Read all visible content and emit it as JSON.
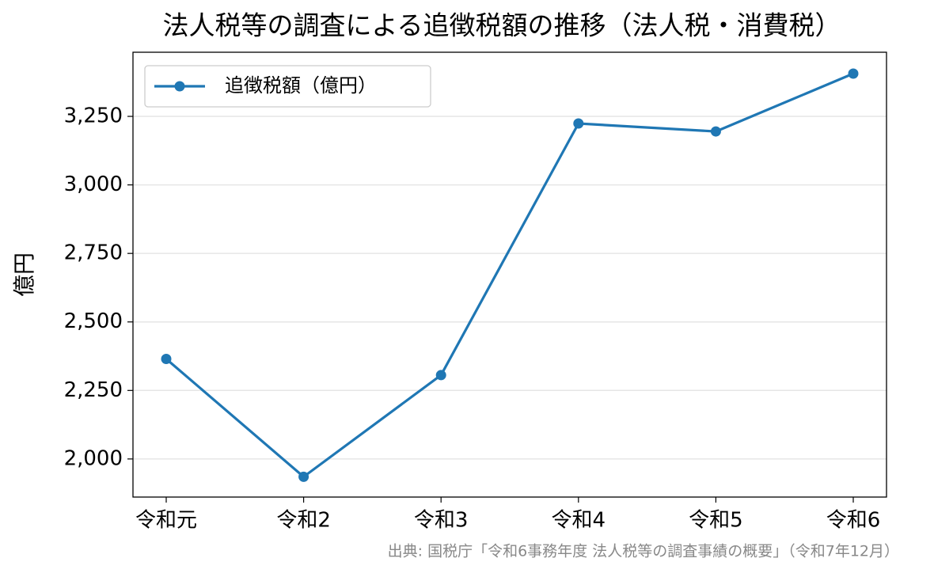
{
  "chart_data": {
    "type": "line",
    "title": "法人税等の調査による追徴税額の推移（法人税・消費税）",
    "y_label": "億円",
    "source": "出典: 国税庁「令和6事務年度 法人税等の調査事績の概要」（令和7年12月）",
    "categories": [
      "令和元",
      "令和2",
      "令和3",
      "令和4",
      "令和5",
      "令和6"
    ],
    "series": [
      {
        "name": "追徴税額（億円）",
        "color": "#1f77b4",
        "values": [
          2365,
          1935,
          2306,
          3224,
          3195,
          3406
        ]
      }
    ],
    "ylim": [
      1861,
      3484
    ],
    "yticks": [
      {
        "value": 2000,
        "label": "2,000"
      },
      {
        "value": 2250,
        "label": "2,250"
      },
      {
        "value": 2500,
        "label": "2,500"
      },
      {
        "value": 2750,
        "label": "2,750"
      },
      {
        "value": 3000,
        "label": "3,000"
      },
      {
        "value": 3250,
        "label": "3,250"
      }
    ],
    "grid": true,
    "legend": "upper left"
  }
}
